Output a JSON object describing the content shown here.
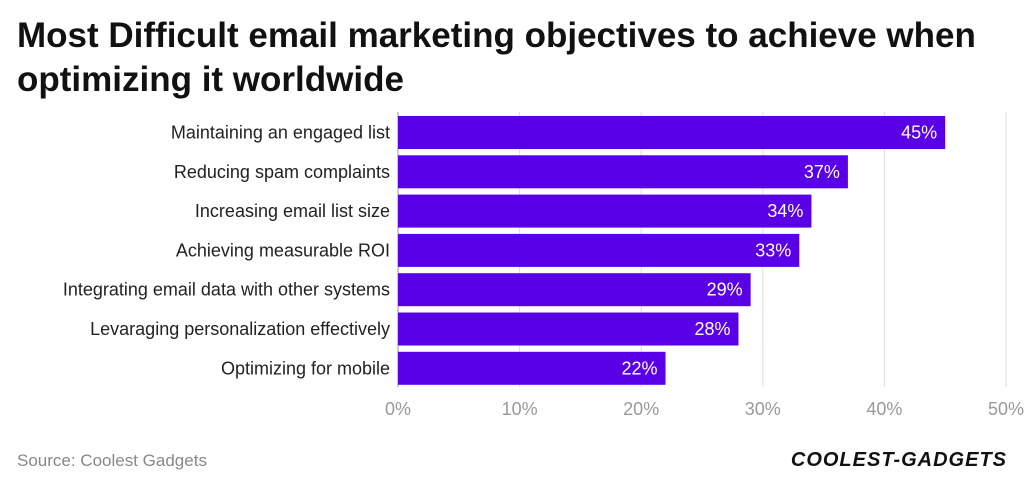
{
  "title": "Most Difficult email marketing objectives to achieve when optimizing it worldwide",
  "source": "Source: Coolest Gadgets",
  "brand": "COOLEST-GADGETS",
  "colors": {
    "bar": "#5a00e6",
    "grid": "#dddddd",
    "axis": "#999999"
  },
  "chart_data": {
    "type": "bar",
    "orientation": "horizontal",
    "categories": [
      "Maintaining an engaged list",
      "Reducing spam complaints",
      "Increasing email list size",
      "Achieving measurable ROI",
      "Integrating email data with other systems",
      "Levaraging personalization effectively",
      "Optimizing for mobile"
    ],
    "values": [
      45,
      37,
      34,
      33,
      29,
      28,
      22
    ],
    "value_labels": [
      "45%",
      "37%",
      "34%",
      "33%",
      "29%",
      "28%",
      "22%"
    ],
    "xlim": [
      0,
      50
    ],
    "xticks": [
      0,
      10,
      20,
      30,
      40,
      50
    ],
    "xtick_labels": [
      "0%",
      "10%",
      "20%",
      "30%",
      "40%",
      "50%"
    ],
    "xlabel": "",
    "ylabel": "",
    "grid": true
  }
}
